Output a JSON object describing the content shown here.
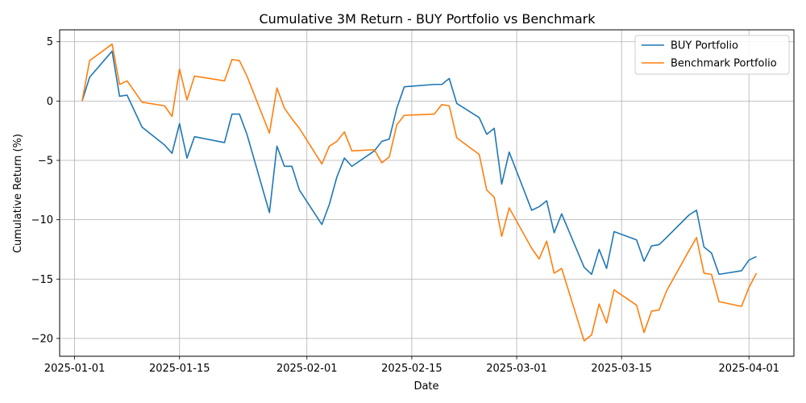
{
  "chart_data": {
    "type": "line",
    "title": "Cumulative 3M Return - BUY Portfolio vs Benchmark",
    "xlabel": "Date",
    "ylabel": "Cumulative Return (%)",
    "xlim": [
      "2024-12-30",
      "2025-04-07"
    ],
    "ylim": [
      -21.5,
      6
    ],
    "x_ticks": [
      "2025-01-01",
      "2025-01-15",
      "2025-02-01",
      "2025-02-15",
      "2025-03-01",
      "2025-03-15",
      "2025-04-01"
    ],
    "y_ticks": [
      5,
      0,
      -5,
      -10,
      -15,
      -20
    ],
    "grid": true,
    "legend_position": "top-right",
    "series": [
      {
        "name": "BUY Portfolio",
        "color": "#1f77b4",
        "points": [
          [
            "2025-01-02",
            0.0
          ],
          [
            "2025-01-03",
            2.0
          ],
          [
            "2025-01-06",
            4.2
          ],
          [
            "2025-01-07",
            0.4
          ],
          [
            "2025-01-08",
            0.5
          ],
          [
            "2025-01-10",
            -2.2
          ],
          [
            "2025-01-13",
            -3.7
          ],
          [
            "2025-01-14",
            -4.4
          ],
          [
            "2025-01-15",
            -1.9
          ],
          [
            "2025-01-16",
            -4.8
          ],
          [
            "2025-01-17",
            -3.0
          ],
          [
            "2025-01-21",
            -3.5
          ],
          [
            "2025-01-22",
            -1.1
          ],
          [
            "2025-01-23",
            -1.1
          ],
          [
            "2025-01-24",
            -2.8
          ],
          [
            "2025-01-27",
            -9.4
          ],
          [
            "2025-01-28",
            -3.8
          ],
          [
            "2025-01-29",
            -5.5
          ],
          [
            "2025-01-30",
            -5.5
          ],
          [
            "2025-01-31",
            -7.5
          ],
          [
            "2025-02-03",
            -10.4
          ],
          [
            "2025-02-04",
            -8.7
          ],
          [
            "2025-02-05",
            -6.4
          ],
          [
            "2025-02-06",
            -4.8
          ],
          [
            "2025-02-07",
            -5.5
          ],
          [
            "2025-02-10",
            -4.2
          ],
          [
            "2025-02-11",
            -3.4
          ],
          [
            "2025-02-12",
            -3.2
          ],
          [
            "2025-02-13",
            -0.6
          ],
          [
            "2025-02-14",
            1.2
          ],
          [
            "2025-02-18",
            1.4
          ],
          [
            "2025-02-19",
            1.4
          ],
          [
            "2025-02-20",
            1.9
          ],
          [
            "2025-02-21",
            -0.2
          ],
          [
            "2025-02-24",
            -1.4
          ],
          [
            "2025-02-25",
            -2.8
          ],
          [
            "2025-02-26",
            -2.3
          ],
          [
            "2025-02-27",
            -7.0
          ],
          [
            "2025-02-28",
            -4.3
          ],
          [
            "2025-03-03",
            -9.2
          ],
          [
            "2025-03-04",
            -8.9
          ],
          [
            "2025-03-05",
            -8.4
          ],
          [
            "2025-03-06",
            -11.1
          ],
          [
            "2025-03-07",
            -9.5
          ],
          [
            "2025-03-10",
            -14.0
          ],
          [
            "2025-03-11",
            -14.6
          ],
          [
            "2025-03-12",
            -12.5
          ],
          [
            "2025-03-13",
            -14.1
          ],
          [
            "2025-03-14",
            -11.0
          ],
          [
            "2025-03-17",
            -11.7
          ],
          [
            "2025-03-18",
            -13.5
          ],
          [
            "2025-03-19",
            -12.2
          ],
          [
            "2025-03-20",
            -12.1
          ],
          [
            "2025-03-21",
            -11.5
          ],
          [
            "2025-03-24",
            -9.6
          ],
          [
            "2025-03-25",
            -9.2
          ],
          [
            "2025-03-26",
            -12.3
          ],
          [
            "2025-03-27",
            -12.8
          ],
          [
            "2025-03-28",
            -14.6
          ],
          [
            "2025-03-31",
            -14.3
          ],
          [
            "2025-04-01",
            -13.4
          ],
          [
            "2025-04-02",
            -13.1
          ]
        ]
      },
      {
        "name": "Benchmark Portfolio",
        "color": "#ff7f0e",
        "points": [
          [
            "2025-01-02",
            0.0
          ],
          [
            "2025-01-03",
            3.4
          ],
          [
            "2025-01-06",
            4.8
          ],
          [
            "2025-01-07",
            1.4
          ],
          [
            "2025-01-08",
            1.7
          ],
          [
            "2025-01-10",
            -0.1
          ],
          [
            "2025-01-13",
            -0.4
          ],
          [
            "2025-01-14",
            -1.3
          ],
          [
            "2025-01-15",
            2.7
          ],
          [
            "2025-01-16",
            0.1
          ],
          [
            "2025-01-17",
            2.1
          ],
          [
            "2025-01-21",
            1.7
          ],
          [
            "2025-01-22",
            3.5
          ],
          [
            "2025-01-23",
            3.4
          ],
          [
            "2025-01-24",
            2.1
          ],
          [
            "2025-01-27",
            -2.7
          ],
          [
            "2025-01-28",
            1.1
          ],
          [
            "2025-01-29",
            -0.6
          ],
          [
            "2025-01-30",
            -1.5
          ],
          [
            "2025-01-31",
            -2.3
          ],
          [
            "2025-02-03",
            -5.3
          ],
          [
            "2025-02-04",
            -3.8
          ],
          [
            "2025-02-05",
            -3.4
          ],
          [
            "2025-02-06",
            -2.6
          ],
          [
            "2025-02-07",
            -4.2
          ],
          [
            "2025-02-10",
            -4.1
          ],
          [
            "2025-02-11",
            -5.2
          ],
          [
            "2025-02-12",
            -4.7
          ],
          [
            "2025-02-13",
            -2.0
          ],
          [
            "2025-02-14",
            -1.2
          ],
          [
            "2025-02-18",
            -1.1
          ],
          [
            "2025-02-19",
            -0.3
          ],
          [
            "2025-02-20",
            -0.4
          ],
          [
            "2025-02-21",
            -3.1
          ],
          [
            "2025-02-24",
            -4.5
          ],
          [
            "2025-02-25",
            -7.5
          ],
          [
            "2025-02-26",
            -8.1
          ],
          [
            "2025-02-27",
            -11.4
          ],
          [
            "2025-02-28",
            -9.0
          ],
          [
            "2025-03-03",
            -12.4
          ],
          [
            "2025-03-04",
            -13.3
          ],
          [
            "2025-03-05",
            -11.8
          ],
          [
            "2025-03-06",
            -14.5
          ],
          [
            "2025-03-07",
            -14.1
          ],
          [
            "2025-03-10",
            -20.2
          ],
          [
            "2025-03-11",
            -19.7
          ],
          [
            "2025-03-12",
            -17.1
          ],
          [
            "2025-03-13",
            -18.7
          ],
          [
            "2025-03-14",
            -15.9
          ],
          [
            "2025-03-17",
            -17.2
          ],
          [
            "2025-03-18",
            -19.5
          ],
          [
            "2025-03-19",
            -17.7
          ],
          [
            "2025-03-20",
            -17.6
          ],
          [
            "2025-03-21",
            -16.0
          ],
          [
            "2025-03-24",
            -12.6
          ],
          [
            "2025-03-25",
            -11.5
          ],
          [
            "2025-03-26",
            -14.5
          ],
          [
            "2025-03-27",
            -14.6
          ],
          [
            "2025-03-28",
            -16.9
          ],
          [
            "2025-03-31",
            -17.3
          ],
          [
            "2025-04-01",
            -15.7
          ],
          [
            "2025-04-02",
            -14.5
          ]
        ]
      }
    ]
  }
}
